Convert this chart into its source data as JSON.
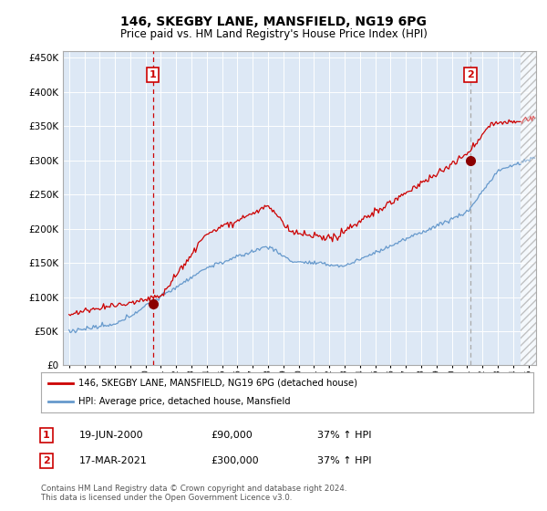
{
  "title": "146, SKEGBY LANE, MANSFIELD, NG19 6PG",
  "subtitle": "Price paid vs. HM Land Registry's House Price Index (HPI)",
  "legend_label_red": "146, SKEGBY LANE, MANSFIELD, NG19 6PG (detached house)",
  "legend_label_blue": "HPI: Average price, detached house, Mansfield",
  "transaction1_label": "1",
  "transaction1_date": "19-JUN-2000",
  "transaction1_price": "£90,000",
  "transaction1_hpi": "37% ↑ HPI",
  "transaction1_year": 2000.47,
  "transaction1_value": 90000,
  "transaction2_label": "2",
  "transaction2_date": "17-MAR-2021",
  "transaction2_price": "£300,000",
  "transaction2_hpi": "37% ↑ HPI",
  "transaction2_year": 2021.21,
  "transaction2_value": 300000,
  "footnote": "Contains HM Land Registry data © Crown copyright and database right 2024.\nThis data is licensed under the Open Government Licence v3.0.",
  "ylim_min": 0,
  "ylim_max": 460000,
  "yticks": [
    0,
    50000,
    100000,
    150000,
    200000,
    250000,
    300000,
    350000,
    400000,
    450000
  ],
  "red_color": "#cc0000",
  "blue_color": "#6699cc",
  "chart_bg": "#dde8f5",
  "vline1_color": "#cc0000",
  "vline2_color": "#aaaaaa",
  "background_color": "#ffffff",
  "grid_color": "#ffffff",
  "hatch_cutoff": 2024.5
}
